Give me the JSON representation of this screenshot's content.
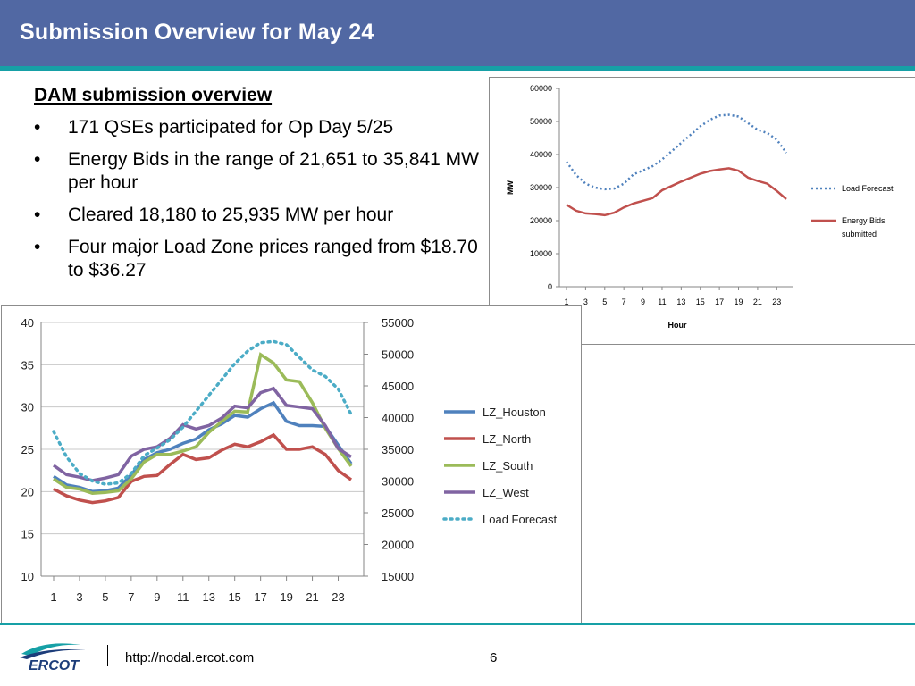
{
  "slide": {
    "title": "Submission Overview for May 24",
    "section_heading": "DAM submission overview",
    "bullets": [
      "171 QSEs participated for Op Day 5/25",
      "Energy Bids in the range of 21,651 to 35,841 MW per hour",
      "Cleared 18,180 to 25,935 MW per hour",
      "Four major Load Zone prices ranged from $18.70 to $36.27"
    ],
    "bullet_symbol": "•",
    "footer_url": "http://nodal.ercot.com",
    "page_number": "6",
    "logo_text": "ERCOT",
    "colors": {
      "header": "#5168a3",
      "stripe": "#16a0a6"
    }
  },
  "chart_data": [
    {
      "type": "line",
      "xlabel": "Hour",
      "ylabel": "MW",
      "ylim": [
        0,
        60000
      ],
      "yticks": [
        0,
        10000,
        20000,
        30000,
        40000,
        50000,
        60000
      ],
      "x": [
        1,
        2,
        3,
        4,
        5,
        6,
        7,
        8,
        9,
        10,
        11,
        12,
        13,
        14,
        15,
        16,
        17,
        18,
        19,
        20,
        21,
        22,
        23,
        24
      ],
      "xtick_labels": [
        "1",
        "3",
        "5",
        "7",
        "9",
        "11",
        "13",
        "15",
        "17",
        "19",
        "21",
        "23"
      ],
      "legend_position": "right",
      "series": [
        {
          "name": "Load Forecast",
          "style": "dotted",
          "color": "#4f81bd",
          "values": [
            37800,
            33800,
            31200,
            30000,
            29500,
            29700,
            31200,
            34000,
            35200,
            36500,
            38500,
            41000,
            43500,
            46000,
            48500,
            50500,
            51800,
            52000,
            51500,
            49500,
            47500,
            46500,
            44500,
            40500
          ]
        },
        {
          "name": "Energy Bids submitted",
          "style": "solid",
          "color": "#c0504d",
          "values": [
            24800,
            23000,
            22200,
            22000,
            21651,
            22400,
            24000,
            25200,
            26000,
            26800,
            29200,
            30500,
            31800,
            33000,
            34200,
            35000,
            35500,
            35841,
            35100,
            33000,
            32000,
            31200,
            29000,
            26500
          ]
        }
      ]
    },
    {
      "type": "line",
      "ylim": [
        10,
        40
      ],
      "yticks": [
        10,
        15,
        20,
        25,
        30,
        35,
        40
      ],
      "y2lim": [
        15000,
        55000
      ],
      "y2ticks": [
        15000,
        20000,
        25000,
        30000,
        35000,
        40000,
        45000,
        50000,
        55000
      ],
      "x": [
        1,
        2,
        3,
        4,
        5,
        6,
        7,
        8,
        9,
        10,
        11,
        12,
        13,
        14,
        15,
        16,
        17,
        18,
        19,
        20,
        21,
        22,
        23,
        24
      ],
      "xtick_labels": [
        "1",
        "3",
        "5",
        "7",
        "9",
        "11",
        "13",
        "15",
        "17",
        "19",
        "21",
        "23"
      ],
      "legend_position": "right",
      "series": [
        {
          "name": "LZ_Houston",
          "color": "#4f81bd",
          "axis": "left",
          "values": [
            21.8,
            20.8,
            20.5,
            20.0,
            20.1,
            20.4,
            22.0,
            23.8,
            24.6,
            25.0,
            25.7,
            26.2,
            27.3,
            28.0,
            29.0,
            28.8,
            29.8,
            30.5,
            28.3,
            27.8,
            27.8,
            27.7,
            25.5,
            23.3
          ]
        },
        {
          "name": "LZ_North",
          "color": "#c0504d",
          "axis": "left",
          "values": [
            20.3,
            19.5,
            19.0,
            18.7,
            18.9,
            19.3,
            21.2,
            21.8,
            21.9,
            23.2,
            24.4,
            23.8,
            24.0,
            24.9,
            25.6,
            25.3,
            25.9,
            26.7,
            25.0,
            25.0,
            25.3,
            24.4,
            22.5,
            21.4
          ]
        },
        {
          "name": "LZ_South",
          "color": "#9bbb59",
          "axis": "left",
          "values": [
            21.5,
            20.5,
            20.3,
            19.8,
            19.9,
            20.1,
            21.5,
            23.5,
            24.4,
            24.4,
            24.8,
            25.3,
            27.0,
            28.3,
            29.5,
            29.4,
            36.2,
            35.2,
            33.2,
            33.0,
            30.5,
            27.5,
            25.1,
            23.0
          ]
        },
        {
          "name": "LZ_West",
          "color": "#8064a2",
          "axis": "left",
          "values": [
            23.1,
            22.0,
            21.7,
            21.3,
            21.6,
            22.0,
            24.2,
            25.0,
            25.3,
            26.3,
            27.9,
            27.4,
            27.8,
            28.7,
            30.1,
            29.9,
            31.7,
            32.2,
            30.2,
            30.0,
            29.8,
            27.8,
            25.1,
            24.1
          ]
        },
        {
          "name": "Load Forecast",
          "color": "#4bacc6",
          "style": "dotted",
          "axis": "right",
          "values": [
            37800,
            33800,
            31200,
            30000,
            29500,
            29700,
            31200,
            34000,
            35200,
            36500,
            38500,
            41000,
            43500,
            46000,
            48500,
            50500,
            51800,
            52000,
            51500,
            49500,
            47500,
            46500,
            44500,
            40500
          ]
        }
      ]
    }
  ]
}
